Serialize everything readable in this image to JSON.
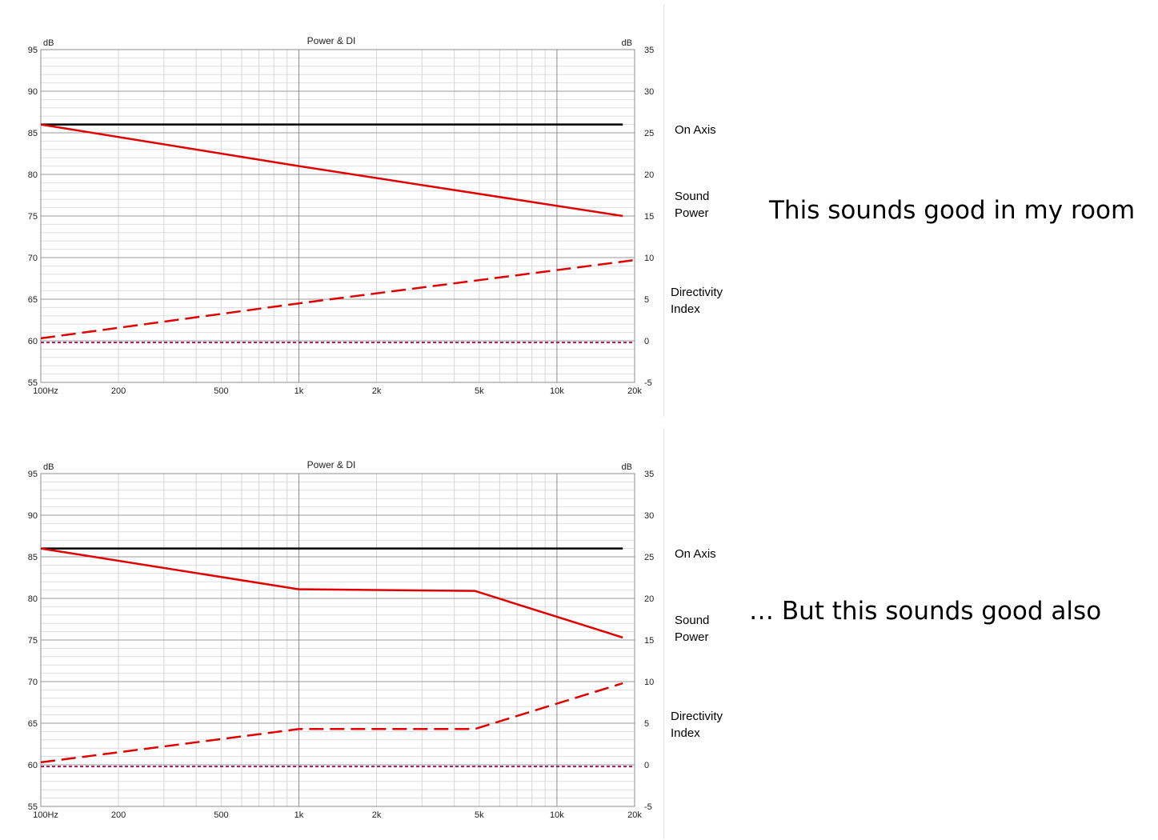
{
  "chart_data": [
    {
      "type": "line",
      "title": "Power & DI",
      "ylabel_left": "dB",
      "ylabel_right": "dB",
      "x_scale": "log",
      "xlim": [
        100,
        20000
      ],
      "ylim_left": [
        55,
        95
      ],
      "ylim_right": [
        -5,
        35
      ],
      "x_ticks": [
        {
          "value": 100,
          "label": "100Hz"
        },
        {
          "value": 200,
          "label": "200"
        },
        {
          "value": 500,
          "label": "500"
        },
        {
          "value": 1000,
          "label": "1k"
        },
        {
          "value": 2000,
          "label": "2k"
        },
        {
          "value": 5000,
          "label": "5k"
        },
        {
          "value": 10000,
          "label": "10k"
        },
        {
          "value": 20000,
          "label": "20k"
        }
      ],
      "y_ticks_left": [
        95,
        90,
        85,
        80,
        75,
        70,
        65,
        60,
        55
      ],
      "y_ticks_right": [
        35,
        30,
        25,
        20,
        15,
        10,
        5,
        0,
        -5
      ],
      "grid": true,
      "series": [
        {
          "name": "On Axis",
          "axis": "left",
          "color": "#000000",
          "style": "solid",
          "points": [
            [
              100,
              86
            ],
            [
              18000,
              86
            ]
          ]
        },
        {
          "name": "Sound Power",
          "axis": "left",
          "color": "#e00000",
          "style": "solid",
          "points": [
            [
              100,
              86
            ],
            [
              1000,
              81
            ],
            [
              18000,
              75
            ]
          ]
        },
        {
          "name": "Directivity Index",
          "axis": "right",
          "color": "#e00000",
          "style": "dashed",
          "points": [
            [
              100,
              0.3
            ],
            [
              1000,
              4.5
            ],
            [
              20000,
              9.7
            ]
          ]
        },
        {
          "axis": "right",
          "color": "#b01060",
          "style": "dotted",
          "points": [
            [
              100,
              -0.2
            ],
            [
              20000,
              -0.2
            ]
          ]
        }
      ]
    },
    {
      "type": "line",
      "title": "Power & DI",
      "ylabel_left": "dB",
      "ylabel_right": "dB",
      "x_scale": "log",
      "xlim": [
        100,
        20000
      ],
      "ylim_left": [
        55,
        95
      ],
      "ylim_right": [
        -5,
        35
      ],
      "x_ticks": [
        {
          "value": 100,
          "label": "100Hz"
        },
        {
          "value": 200,
          "label": "200"
        },
        {
          "value": 500,
          "label": "500"
        },
        {
          "value": 1000,
          "label": "1k"
        },
        {
          "value": 2000,
          "label": "2k"
        },
        {
          "value": 5000,
          "label": "5k"
        },
        {
          "value": 10000,
          "label": "10k"
        },
        {
          "value": 20000,
          "label": "20k"
        }
      ],
      "y_ticks_left": [
        95,
        90,
        85,
        80,
        75,
        70,
        65,
        60,
        55
      ],
      "y_ticks_right": [
        35,
        30,
        25,
        20,
        15,
        10,
        5,
        0,
        -5
      ],
      "grid": true,
      "series": [
        {
          "name": "On Axis",
          "axis": "left",
          "color": "#000000",
          "style": "solid",
          "points": [
            [
              100,
              86
            ],
            [
              18000,
              86
            ]
          ]
        },
        {
          "name": "Sound Power",
          "axis": "left",
          "color": "#e00000",
          "style": "solid",
          "points": [
            [
              100,
              86
            ],
            [
              1000,
              81.1
            ],
            [
              4800,
              80.9
            ],
            [
              18000,
              75.3
            ]
          ]
        },
        {
          "name": "Directivity Index",
          "axis": "right",
          "color": "#e00000",
          "style": "dashed",
          "points": [
            [
              100,
              0.3
            ],
            [
              1000,
              4.3
            ],
            [
              4800,
              4.3
            ],
            [
              18000,
              9.8
            ]
          ]
        },
        {
          "axis": "right",
          "color": "#b01060",
          "style": "dotted",
          "points": [
            [
              100,
              -0.2
            ],
            [
              20000,
              -0.2
            ]
          ]
        }
      ]
    }
  ],
  "labels": {
    "on_axis": "On Axis",
    "sound_power": "Sound\nPower",
    "directivity_index": "Directivity\nIndex"
  },
  "captions": {
    "top": "This sounds good in my room",
    "bottom": "… But this sounds good also"
  }
}
